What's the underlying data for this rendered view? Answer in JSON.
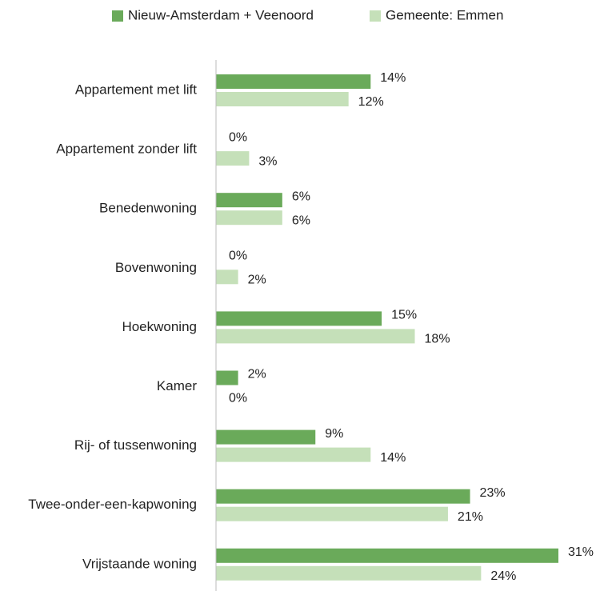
{
  "chart_data": {
    "type": "barh",
    "categories": [
      "Appartement met lift",
      "Appartement zonder lift",
      "Benedenwoning",
      "Bovenwoning",
      "Hoekwoning",
      "Kamer",
      "Rij- of tussenwoning",
      "Twee-onder-een-kapwoning",
      "Vrijstaande woning"
    ],
    "series": [
      {
        "name": "Nieuw-Amsterdam + Veenoord",
        "color": "#6aaa5a",
        "values": [
          14,
          0,
          6,
          0,
          15,
          2,
          9,
          23,
          31
        ],
        "value_labels": [
          "14%",
          "0%",
          "6%",
          "0%",
          "15%",
          "2%",
          "9%",
          "23%",
          "31%"
        ]
      },
      {
        "name": "Gemeente: Emmen",
        "color": "#c5e0b9",
        "values": [
          12,
          3,
          6,
          2,
          18,
          0,
          14,
          21,
          24
        ],
        "value_labels": [
          "12%",
          "3%",
          "6%",
          "2%",
          "18%",
          "0%",
          "14%",
          "21%",
          "24%"
        ]
      }
    ],
    "legend": "top"
  }
}
